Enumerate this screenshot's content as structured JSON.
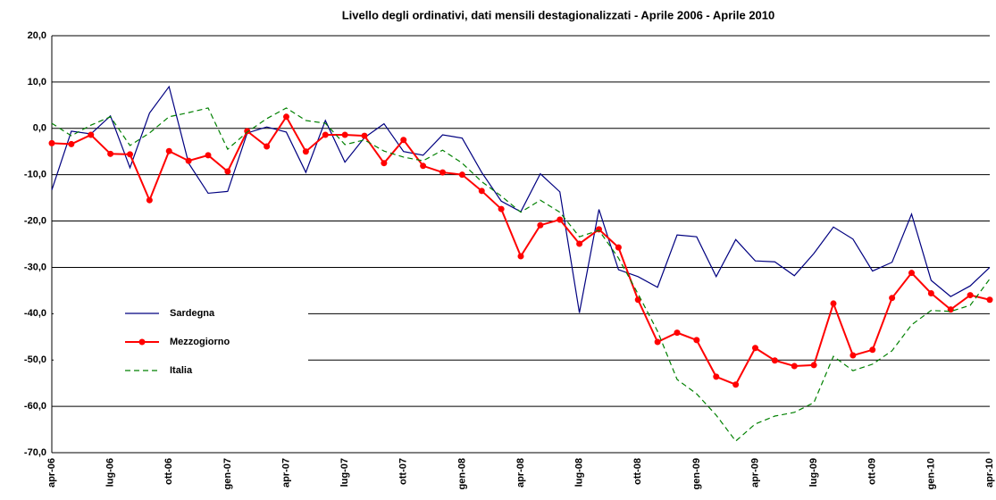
{
  "chart_data": {
    "type": "line",
    "title": "Livello degli ordinativi, dati mensili destagionalizzati - Aprile 2006 - Aprile 2010",
    "categories": [
      "apr-06",
      null,
      null,
      "lug-06",
      null,
      null,
      "ott-06",
      null,
      null,
      "gen-07",
      null,
      null,
      "apr-07",
      null,
      null,
      "lug-07",
      null,
      null,
      "ott-07",
      null,
      null,
      "gen-08",
      null,
      null,
      "apr-08",
      null,
      null,
      "lug-08",
      null,
      null,
      "ott-08",
      null,
      null,
      "gen-09",
      null,
      null,
      "apr-09",
      null,
      null,
      "lug-09",
      null,
      null,
      "ott-09",
      null,
      null,
      "gen-10",
      null,
      null,
      "apr-10"
    ],
    "series": [
      {
        "name": "Sardegna",
        "color": "#000080",
        "marker": false,
        "dash": false,
        "values": [
          -13.3,
          -0.6,
          -1.2,
          2.7,
          -8.5,
          3.3,
          9.0,
          -7.5,
          -14,
          -13.6,
          -1,
          0.3,
          -0.8,
          -9.5,
          1.7,
          -7.3,
          -2,
          1,
          -5,
          -5.8,
          -1.4,
          -2.1,
          -9.5,
          -15.7,
          -18,
          -9.8,
          -13.7,
          -39.8,
          -17.5,
          -30.5,
          -32,
          -34.3,
          -23,
          -23.4,
          -32,
          -24,
          -28.6,
          -28.8,
          -31.8,
          -27,
          -21.3,
          -23.9,
          -30.8,
          -28.9,
          -18.5,
          -32.8,
          -36.3,
          -34,
          -30
        ]
      },
      {
        "name": "Mezzogiorno",
        "color": "#ff0000",
        "marker": true,
        "dash": false,
        "values": [
          -3.2,
          -3.4,
          -1.4,
          -5.5,
          -5.6,
          -15.5,
          -4.9,
          -7,
          -5.8,
          -9.3,
          -0.6,
          -3.9,
          2.5,
          -5,
          -1.4,
          -1.4,
          -1.6,
          -7.5,
          -2.5,
          -8.1,
          -9.5,
          -10,
          -13.5,
          -17.4,
          -27.6,
          -20.9,
          -19.7,
          -24.9,
          -21.8,
          -25.7,
          -37,
          -46.1,
          -44.1,
          -45.7,
          -53.6,
          -55.3,
          -47.4,
          -50.1,
          -51.3,
          -51.1,
          -37.8,
          -49,
          -47.8,
          -36.6,
          -31.2,
          -35.6,
          -39.1,
          -36,
          -37
        ]
      },
      {
        "name": "Italia",
        "color": "#008000",
        "marker": false,
        "dash": true,
        "values": [
          1.1,
          -1.6,
          0.7,
          2.5,
          -3.7,
          -1,
          2.5,
          3.4,
          4.4,
          -4.5,
          -0.8,
          2.1,
          4.4,
          1.7,
          1.1,
          -3.5,
          -2.5,
          -4.9,
          -6.2,
          -7,
          -4.7,
          -7.5,
          -11.5,
          -14.6,
          -18.1,
          -15.5,
          -18.1,
          -23.4,
          -22,
          -28,
          -35.7,
          -43.8,
          -54.2,
          -57.3,
          -61.9,
          -67.5,
          -63.8,
          -62.1,
          -61.3,
          -59.2,
          -49.2,
          -52.3,
          -50.9,
          -48,
          -42.4,
          -39.3,
          -39.5,
          -38.2,
          -32.5
        ]
      }
    ],
    "ylim": [
      -70,
      20
    ],
    "yticks": [
      {
        "value": -70,
        "label": "-70,0"
      },
      {
        "value": -60,
        "label": "-60,0"
      },
      {
        "value": -50,
        "label": "-50,0"
      },
      {
        "value": -40,
        "label": "-40,0"
      },
      {
        "value": -30,
        "label": "-30,0"
      },
      {
        "value": -20,
        "label": "-20,0"
      },
      {
        "value": -10,
        "label": "-10,0"
      },
      {
        "value": 0,
        "label": "0,0"
      },
      {
        "value": 10,
        "label": "10,0"
      },
      {
        "value": 20,
        "label": "20,0"
      }
    ],
    "grid": true,
    "legend": "left"
  }
}
